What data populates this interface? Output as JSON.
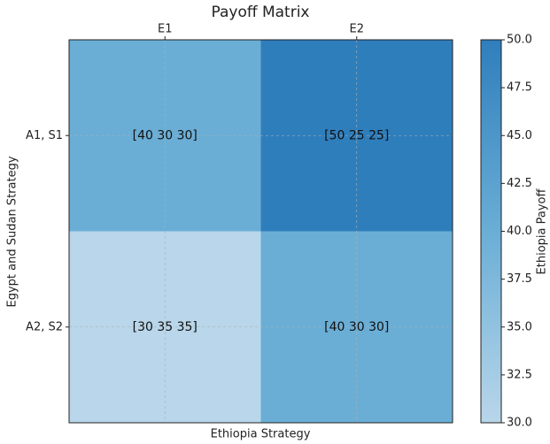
{
  "chart_data": {
    "type": "heatmap",
    "title": "Payoff Matrix",
    "x_label": "Ethiopia Strategy",
    "y_label": "Egypt and Sudan Strategy",
    "x_categories": [
      "E1",
      "E2"
    ],
    "y_categories": [
      "A1, S1",
      "A2, S2"
    ],
    "values": [
      [
        40,
        50
      ],
      [
        30,
        40
      ]
    ],
    "cell_labels": [
      [
        "[40 30 30]",
        "[50 25 25]"
      ],
      [
        "[30 35 35]",
        "[40 30 30]"
      ]
    ],
    "colormap": [
      "#b9d6ea",
      "#6aaed6",
      "#2f7ebc"
    ],
    "clim": [
      30,
      50
    ],
    "colorbar_label": "Ethiopia Payoff",
    "colorbar_ticks": [
      {
        "value": 30,
        "label": "30.0"
      },
      {
        "value": 32.5,
        "label": "32.5"
      },
      {
        "value": 35,
        "label": "35.0"
      },
      {
        "value": 37.5,
        "label": "37.5"
      },
      {
        "value": 40,
        "label": "40.0"
      },
      {
        "value": 42.5,
        "label": "42.5"
      },
      {
        "value": 45,
        "label": "45.0"
      },
      {
        "value": 47.5,
        "label": "47.5"
      },
      {
        "value": 50,
        "label": "50.0"
      }
    ],
    "grid": true
  }
}
